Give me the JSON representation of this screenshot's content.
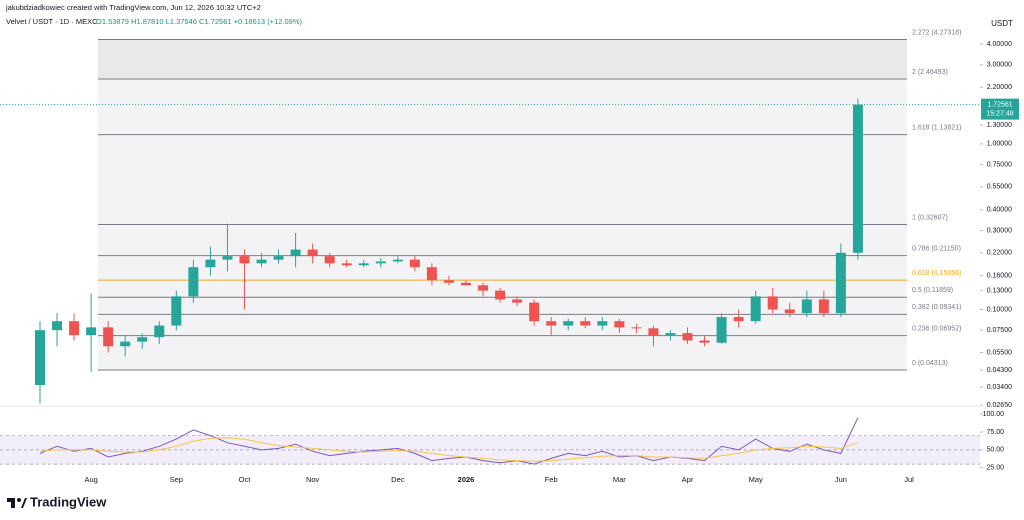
{
  "header": {
    "author_line": "jakubdziadkowiec created with TradingView.com, Jun 12, 2026 10:32 UTC+2",
    "symbol": "Velvet / USDT · 1D · MEXC",
    "ohlc": "O1.53879 H1.87810 L1.37546 C1.72561 +0.18613 (+12.09%)"
  },
  "chart_data": [
    {
      "type": "candlestick",
      "y_axis_label": "USDT",
      "log_scale": true,
      "categories": [
        null,
        null,
        null,
        "Aug",
        null,
        null,
        null,
        null,
        "Sep",
        null,
        null,
        null,
        "Oct",
        null,
        null,
        null,
        "Nov",
        null,
        null,
        null,
        null,
        "Dec",
        null,
        null,
        null,
        "2026",
        null,
        null,
        null,
        null,
        "Feb",
        null,
        null,
        null,
        "Mar",
        null,
        null,
        null,
        "Apr",
        null,
        null,
        null,
        "May",
        null,
        null,
        null,
        null,
        "Jun",
        null,
        null,
        null,
        "Jul"
      ],
      "open": [
        0.035,
        0.075,
        0.085,
        0.07,
        0.078,
        0.06,
        0.064,
        0.068,
        0.08,
        0.12,
        0.18,
        0.2,
        0.21,
        0.19,
        0.2,
        0.21,
        0.23,
        0.21,
        0.19,
        0.185,
        0.19,
        0.195,
        0.2,
        0.18,
        0.15,
        0.145,
        0.14,
        0.13,
        0.115,
        0.11,
        0.085,
        0.08,
        0.085,
        0.08,
        0.085,
        0.078,
        0.077,
        0.07,
        0.072,
        0.065,
        0.063,
        0.09,
        0.085,
        0.12,
        0.1,
        0.095,
        0.115,
        0.095,
        0.22,
        null,
        null,
        null
      ],
      "high": [
        0.085,
        0.095,
        0.095,
        0.125,
        0.085,
        0.07,
        0.072,
        0.085,
        0.13,
        0.2,
        0.24,
        0.33,
        0.23,
        0.22,
        0.23,
        0.29,
        0.25,
        0.22,
        0.2,
        0.2,
        0.205,
        0.21,
        0.21,
        0.19,
        0.16,
        0.15,
        0.145,
        0.135,
        0.12,
        0.115,
        0.09,
        0.088,
        0.09,
        0.09,
        0.088,
        0.082,
        0.08,
        0.075,
        0.078,
        0.07,
        0.095,
        0.1,
        0.13,
        0.135,
        0.11,
        0.13,
        0.13,
        0.25,
        1.8781,
        null,
        null,
        null
      ],
      "low": [
        0.027,
        0.06,
        0.065,
        0.042,
        0.055,
        0.052,
        0.058,
        0.062,
        0.075,
        0.11,
        0.16,
        0.17,
        0.1,
        0.18,
        0.19,
        0.18,
        0.19,
        0.18,
        0.18,
        0.18,
        0.18,
        0.19,
        0.17,
        0.14,
        0.14,
        0.14,
        0.12,
        0.11,
        0.105,
        0.08,
        0.07,
        0.075,
        0.077,
        0.075,
        0.072,
        0.072,
        0.06,
        0.065,
        0.062,
        0.06,
        0.062,
        0.078,
        0.082,
        0.095,
        0.09,
        0.09,
        0.09,
        0.09,
        0.2,
        null,
        null,
        null
      ],
      "close": [
        0.075,
        0.085,
        0.07,
        0.078,
        0.06,
        0.064,
        0.068,
        0.08,
        0.12,
        0.18,
        0.2,
        0.21,
        0.19,
        0.2,
        0.21,
        0.23,
        0.21,
        0.19,
        0.185,
        0.19,
        0.195,
        0.2,
        0.18,
        0.15,
        0.145,
        0.14,
        0.13,
        0.115,
        0.11,
        0.085,
        0.08,
        0.085,
        0.08,
        0.085,
        0.078,
        0.077,
        0.07,
        0.072,
        0.065,
        0.063,
        0.09,
        0.085,
        0.12,
        0.1,
        0.095,
        0.115,
        0.095,
        0.22,
        1.72561,
        null,
        null,
        null
      ],
      "up_color": "#26a69a",
      "down_color": "#ef5350",
      "ylim": [
        0.0265,
        5.6
      ],
      "yticks": [
        {
          "value": 4,
          "label": "4.00000"
        },
        {
          "value": 3,
          "label": "3.00000"
        },
        {
          "value": 2.2,
          "label": "2.20000"
        },
        {
          "value": 1.3,
          "label": "1.30000"
        },
        {
          "value": 1,
          "label": "1.00000"
        },
        {
          "value": 0.75,
          "label": "0.75000"
        },
        {
          "value": 0.55,
          "label": "0.55000"
        },
        {
          "value": 0.4,
          "label": "0.40000"
        },
        {
          "value": 0.3,
          "label": "0.30000"
        },
        {
          "value": 0.22,
          "label": "0.22000"
        },
        {
          "value": 0.16,
          "label": "0.16000"
        },
        {
          "value": 0.13,
          "label": "0.13000"
        },
        {
          "value": 0.1,
          "label": "0.10000"
        },
        {
          "value": 0.075,
          "label": "0.07500"
        },
        {
          "value": 0.055,
          "label": "0.05500"
        },
        {
          "value": 0.043,
          "label": "0.04300"
        },
        {
          "value": 0.034,
          "label": "0.03400"
        },
        {
          "value": 0.0265,
          "label": "0.02650"
        }
      ],
      "fib_levels": [
        {
          "value": 4.27318,
          "label": "2.272 (4.27318)",
          "color": "#787b86"
        },
        {
          "value": 2.46493,
          "label": "2 (2.46493)",
          "color": "#787b86"
        },
        {
          "value": 1.13821,
          "label": "1.618 (1.13821)",
          "color": "#787b86"
        },
        {
          "value": 0.32607,
          "label": "1 (0.32607)",
          "color": "#787b86"
        },
        {
          "value": 0.2115,
          "label": "0.786 (0.21150)",
          "color": "#787b86"
        },
        {
          "value": 0.15056,
          "label": "0.618 (0.15056)",
          "color": "#f5a623"
        },
        {
          "value": 0.11859,
          "label": "0.5 (0.11859)",
          "color": "#787b86"
        },
        {
          "value": 0.09341,
          "label": "0.382 (0.09341)",
          "color": "#787b86"
        },
        {
          "value": 0.06952,
          "label": "0.236 (0.06952)",
          "color": "#787b86"
        },
        {
          "value": 0.04313,
          "label": "0 (0.04313)",
          "color": "#787b86"
        }
      ],
      "last_price_label": "1.72561",
      "countdown": "15:27:48"
    },
    {
      "type": "line",
      "series": [
        {
          "color": "#7e57c2",
          "values": [
            45,
            55,
            48,
            52,
            40,
            45,
            48,
            55,
            65,
            78,
            70,
            60,
            55,
            50,
            52,
            58,
            48,
            42,
            45,
            48,
            50,
            52,
            45,
            35,
            38,
            40,
            35,
            32,
            35,
            30,
            38,
            45,
            42,
            48,
            40,
            42,
            35,
            40,
            38,
            35,
            55,
            50,
            65,
            52,
            48,
            58,
            50,
            45,
            95,
            null,
            null,
            null
          ]
        },
        {
          "color": "#f7c548",
          "values": [
            48,
            50,
            50,
            50,
            48,
            47,
            47,
            50,
            55,
            62,
            66,
            67,
            65,
            60,
            56,
            54,
            52,
            50,
            48,
            47,
            48,
            49,
            48,
            45,
            42,
            40,
            38,
            36,
            35,
            34,
            35,
            37,
            39,
            41,
            42,
            42,
            40,
            40,
            39,
            38,
            42,
            45,
            50,
            52,
            53,
            55,
            54,
            52,
            60,
            null,
            null,
            null
          ]
        }
      ],
      "band_levels": [
        30,
        50,
        70
      ],
      "band_color": "#7e57c2",
      "ylim": [
        19,
        110
      ],
      "yticks": [
        {
          "value": 100,
          "label": "100.00"
        },
        {
          "value": 75,
          "label": "75.00"
        },
        {
          "value": 50,
          "label": "50.00"
        },
        {
          "value": 25,
          "label": "25.00"
        }
      ]
    }
  ],
  "footer": {
    "brand": "TradingView"
  }
}
